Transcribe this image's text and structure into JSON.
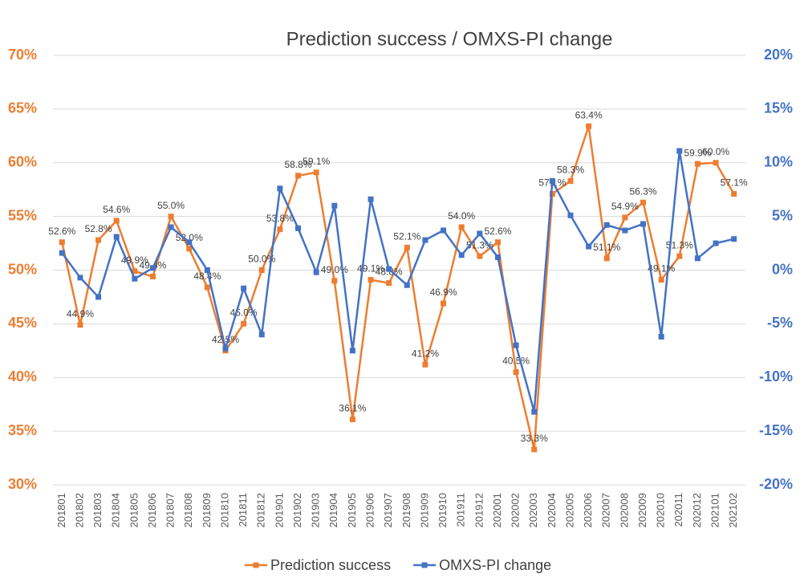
{
  "chart_data": {
    "type": "line",
    "title": "Prediction success / OMXS-PI change",
    "categories": [
      "201801",
      "201802",
      "201803",
      "201804",
      "201805",
      "201806",
      "201807",
      "201808",
      "201809",
      "201810",
      "201811",
      "201812",
      "201901",
      "201902",
      "201903",
      "201904",
      "201905",
      "201906",
      "201907",
      "201908",
      "201909",
      "201910",
      "201911",
      "201912",
      "202001",
      "202002",
      "202003",
      "202004",
      "202005",
      "202006",
      "202007",
      "202008",
      "202009",
      "202010",
      "202011",
      "202012",
      "202101",
      "202102"
    ],
    "series": [
      {
        "name": "Prediction success",
        "color": "#ED7D31",
        "axis": "y",
        "values": [
          52.6,
          44.9,
          52.8,
          54.6,
          49.9,
          49.4,
          55.0,
          52.0,
          48.4,
          42.5,
          45.0,
          50.0,
          53.8,
          58.8,
          59.1,
          49.0,
          36.1,
          49.1,
          48.8,
          52.1,
          41.2,
          46.9,
          54.0,
          51.3,
          52.6,
          40.5,
          33.3,
          57.1,
          58.3,
          63.4,
          51.1,
          54.9,
          56.3,
          49.1,
          51.3,
          59.9,
          60.0,
          57.1
        ],
        "value_labels": [
          "52.6%",
          "44.9%",
          "52.8%",
          "54.6%",
          "49.9%",
          "49.4%",
          "55.0%",
          "52.0%",
          "48.4%",
          "42.5%",
          "45.0%",
          "50.0%",
          "53.8%",
          "58.8%",
          "59.1%",
          "49.0%",
          "36.1%",
          "49.1%",
          "48.8%",
          "52.1%",
          "41.2%",
          "46.9%",
          "54.0%",
          "51.3%",
          "52.6%",
          "40.5%",
          "33.3%",
          "57.1%",
          "58.3%",
          "63.4%",
          "51.1%",
          "54.9%",
          "56.3%",
          "49.1%",
          "51.3%",
          "59.9%",
          "60.0%",
          "57.1%"
        ]
      },
      {
        "name": "OMXS-PI change",
        "color": "#4472C4",
        "axis": "y2",
        "values": [
          1.6,
          -0.7,
          -2.5,
          3.1,
          -0.8,
          0.2,
          4.0,
          2.6,
          0,
          -7.3,
          -1.7,
          -6.0,
          7.6,
          3.9,
          -0.2,
          6.0,
          -7.5,
          6.6,
          0.1,
          -1.4,
          2.8,
          3.7,
          1.4,
          3.4,
          1.2,
          -7.0,
          -13.2,
          8.3,
          5.1,
          2.2,
          4.2,
          3.7,
          4.3,
          -6.2,
          11.1,
          1.1,
          2.5,
          2.9
        ]
      }
    ],
    "ylim": [
      30,
      70
    ],
    "yticks": [
      {
        "value": 30,
        "label": "30%"
      },
      {
        "value": 35,
        "label": "35%"
      },
      {
        "value": 40,
        "label": "40%"
      },
      {
        "value": 45,
        "label": "45%"
      },
      {
        "value": 50,
        "label": "50%"
      },
      {
        "value": 55,
        "label": "55%"
      },
      {
        "value": 60,
        "label": "60%"
      },
      {
        "value": 65,
        "label": "65%"
      },
      {
        "value": 70,
        "label": "70%"
      }
    ],
    "y2lim": [
      -20,
      20
    ],
    "y2ticks": [
      {
        "value": -20,
        "label": "-20%"
      },
      {
        "value": -15,
        "label": "-15%"
      },
      {
        "value": -10,
        "label": "-10%"
      },
      {
        "value": -5,
        "label": "-5%"
      },
      {
        "value": 0,
        "label": "0%"
      },
      {
        "value": 5,
        "label": "5%"
      },
      {
        "value": 10,
        "label": "10%"
      },
      {
        "value": 15,
        "label": "15%"
      },
      {
        "value": 20,
        "label": "20%"
      }
    ],
    "grid": true,
    "legend": "bottom"
  }
}
